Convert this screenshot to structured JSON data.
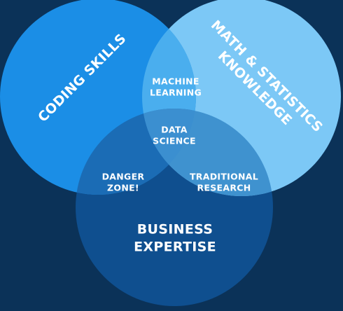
{
  "diagram": {
    "circles": {
      "coding": {
        "lines": [
          "CODING SKILLS"
        ],
        "color": "#1b8ee6"
      },
      "math": {
        "lines": [
          "MATH & STATISTICS",
          "KNOWLEDGE"
        ],
        "color": "#7cc8f6"
      },
      "business": {
        "lines": [
          "BUSINESS",
          "EXPERTISE"
        ],
        "color": "#0f4f8f"
      }
    },
    "intersections": {
      "machine_learning": [
        "MACHINE",
        "LEARNING"
      ],
      "data_science": [
        "DATA",
        "SCIENCE"
      ],
      "danger_zone": [
        "DANGER",
        "ZONE!"
      ],
      "traditional_research": [
        "TRADITIONAL",
        "RESEARCH"
      ]
    },
    "colors": {
      "background": "#0b3258",
      "coding_math_overlap": "#4aaeee",
      "center_overlap": "#3b8fd0",
      "coding_business_overlap": "#1b6cb5",
      "math_business_overlap": "#3f92cf",
      "text": "#ffffff"
    }
  }
}
